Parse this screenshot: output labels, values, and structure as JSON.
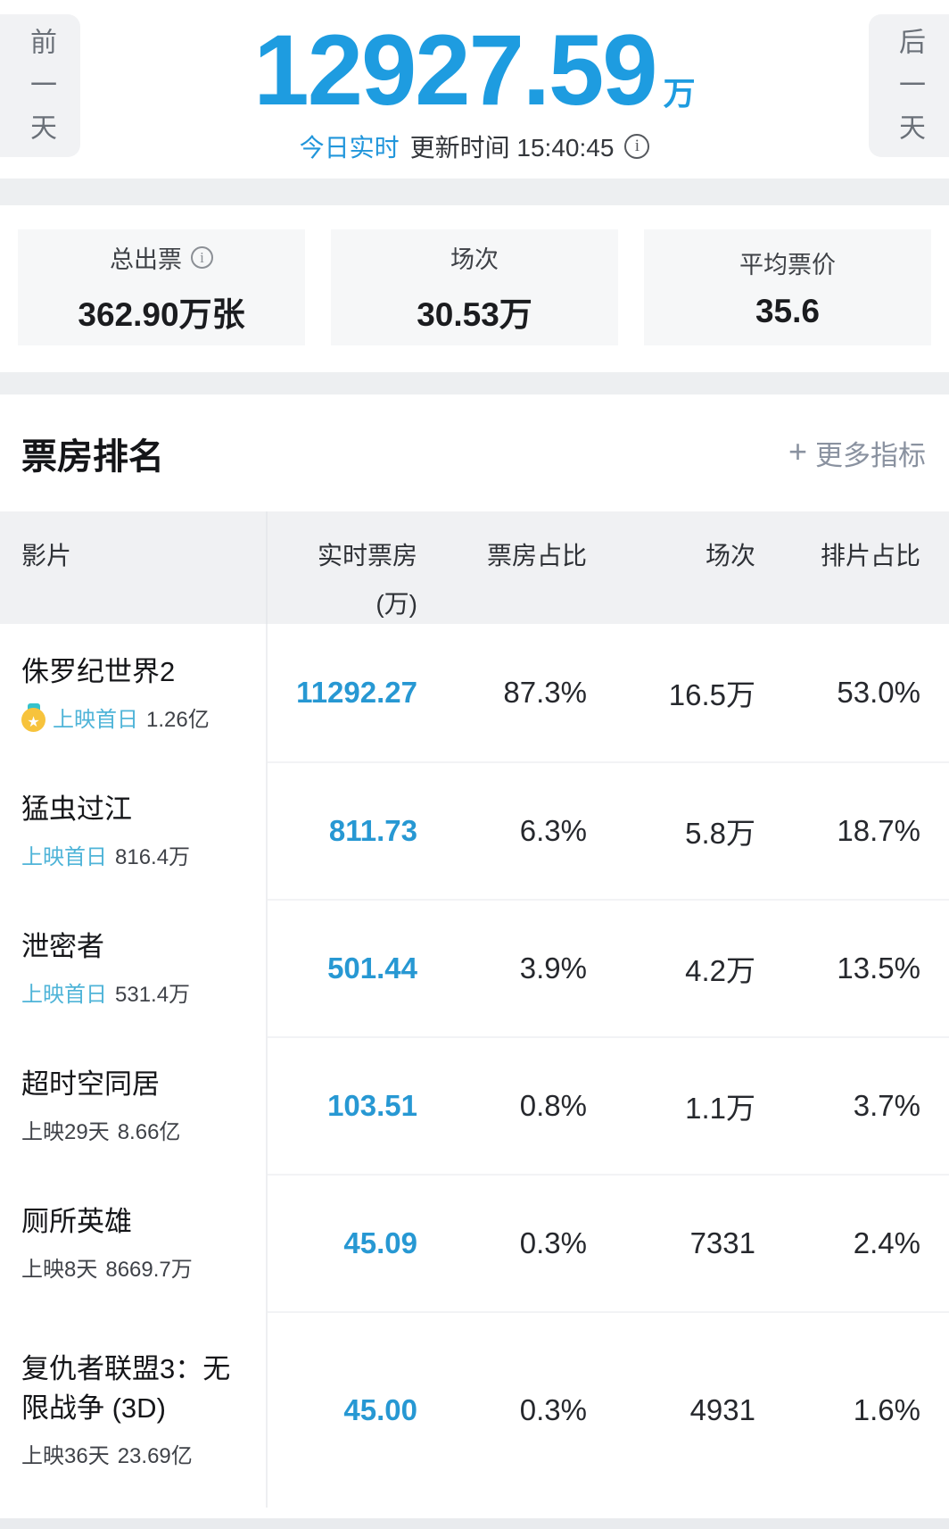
{
  "colors": {
    "accent_blue": "#1e9ce0",
    "table_number_blue": "#2798d3",
    "release_day_blue": "#4fb4d8",
    "medal_gold": "#f7c33c",
    "medal_ribbon_teal": "#35c2cc"
  },
  "hero": {
    "prev_day_label": "前一天",
    "next_day_label": "后一天",
    "number": "12927.59",
    "unit": "万",
    "realtime_label": "今日实时",
    "update_prefix": "更新时间",
    "update_time": "15:40:45"
  },
  "stats": {
    "cards": [
      {
        "label": "总出票",
        "value": "362.90万张"
      },
      {
        "label": "场次",
        "value": "30.53万"
      },
      {
        "label": "平均票价",
        "value": "35.6"
      }
    ]
  },
  "ranking": {
    "title": "票房排名",
    "more_plus": "+",
    "more_label": "更多指标"
  },
  "table": {
    "headers": {
      "movie": "影片",
      "realtime": "实时票房",
      "realtime_unit": "(万)",
      "share": "票房占比",
      "sessions": "场次",
      "schedule": "排片占比"
    },
    "rows": [
      {
        "title": "侏罗纪世界2",
        "badge": "gold-medal",
        "release": "上映首日",
        "total": "1.26亿",
        "realtime": "11292.27",
        "share": "87.3%",
        "sessions": "16.5万",
        "schedule": "53.0%"
      },
      {
        "title": "猛虫过江",
        "release": "上映首日",
        "total": "816.4万",
        "realtime": "811.73",
        "share": "6.3%",
        "sessions": "5.8万",
        "schedule": "18.7%"
      },
      {
        "title": "泄密者",
        "release": "上映首日",
        "total": "531.4万",
        "realtime": "501.44",
        "share": "3.9%",
        "sessions": "4.2万",
        "schedule": "13.5%"
      },
      {
        "title": "超时空同居",
        "release": "上映29天",
        "total": "8.66亿",
        "realtime": "103.51",
        "share": "0.8%",
        "sessions": "1.1万",
        "schedule": "3.7%"
      },
      {
        "title": "厕所英雄",
        "release": "上映8天",
        "total": "8669.7万",
        "realtime": "45.09",
        "share": "0.3%",
        "sessions": "7331",
        "schedule": "2.4%"
      },
      {
        "title": "复仇者联盟3：无限战争 (3D)",
        "release": "上映36天",
        "total": "23.69亿",
        "realtime": "45.00",
        "share": "0.3%",
        "sessions": "4931",
        "schedule": "1.6%"
      }
    ]
  }
}
